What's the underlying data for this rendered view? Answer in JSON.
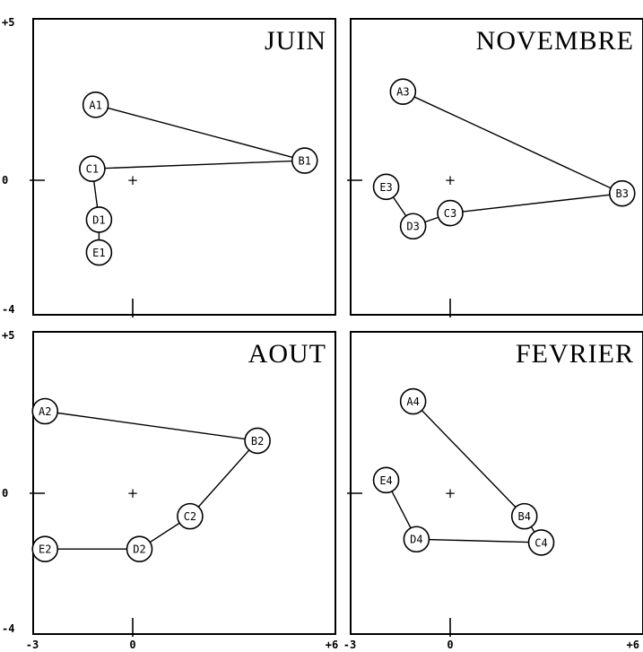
{
  "chart_data": [
    {
      "type": "scatter",
      "title": "JUIN",
      "xlim": [
        -3,
        6
      ],
      "ylim": [
        -4,
        5
      ],
      "yticks": [
        "+5",
        "0",
        "-4"
      ],
      "xticks": [],
      "points": [
        {
          "label": "A1",
          "x": -1.1,
          "y": 2.3
        },
        {
          "label": "B1",
          "x": 5.1,
          "y": 0.6
        },
        {
          "label": "C1",
          "x": -1.2,
          "y": 0.35
        },
        {
          "label": "D1",
          "x": -1.0,
          "y": -1.2
        },
        {
          "label": "E1",
          "x": -1.0,
          "y": -2.2
        }
      ],
      "edges": [
        [
          "A1",
          "B1"
        ],
        [
          "C1",
          "B1"
        ],
        [
          "C1",
          "D1"
        ],
        [
          "D1",
          "E1"
        ]
      ]
    },
    {
      "type": "scatter",
      "title": "NOVEMBRE",
      "xlim": [
        -3,
        6
      ],
      "ylim": [
        -4,
        5
      ],
      "yticks": [],
      "xticks": [],
      "points": [
        {
          "label": "A3",
          "x": -1.4,
          "y": 2.7
        },
        {
          "label": "B3",
          "x": 5.1,
          "y": -0.4
        },
        {
          "label": "C3",
          "x": 0.0,
          "y": -1.0
        },
        {
          "label": "D3",
          "x": -1.1,
          "y": -1.4
        },
        {
          "label": "E3",
          "x": -1.9,
          "y": -0.2
        }
      ],
      "edges": [
        [
          "A3",
          "B3"
        ],
        [
          "B3",
          "C3"
        ],
        [
          "C3",
          "D3"
        ],
        [
          "D3",
          "E3"
        ]
      ]
    },
    {
      "type": "scatter",
      "title": "AOUT",
      "xlim": [
        -3,
        6
      ],
      "ylim": [
        -4,
        5
      ],
      "yticks": [
        "+5",
        "0",
        "-4"
      ],
      "xticks": [
        "-3",
        "0",
        "+6"
      ],
      "points": [
        {
          "label": "A2",
          "x": -2.6,
          "y": 2.5
        },
        {
          "label": "B2",
          "x": 3.7,
          "y": 1.6
        },
        {
          "label": "C2",
          "x": 1.7,
          "y": -0.7
        },
        {
          "label": "D2",
          "x": 0.2,
          "y": -1.7
        },
        {
          "label": "E2",
          "x": -2.6,
          "y": -1.7
        }
      ],
      "edges": [
        [
          "A2",
          "B2"
        ],
        [
          "B2",
          "C2"
        ],
        [
          "C2",
          "D2"
        ],
        [
          "D2",
          "E2"
        ]
      ]
    },
    {
      "type": "scatter",
      "title": "FEVRIER",
      "xlim": [
        -3,
        6
      ],
      "ylim": [
        -4,
        5
      ],
      "yticks": [],
      "xticks": [
        "-3",
        "0",
        "+6"
      ],
      "points": [
        {
          "label": "A4",
          "x": -1.1,
          "y": 2.8
        },
        {
          "label": "B4",
          "x": 2.2,
          "y": -0.7
        },
        {
          "label": "C4",
          "x": 2.7,
          "y": -1.5
        },
        {
          "label": "D4",
          "x": -1.0,
          "y": -1.4
        },
        {
          "label": "E4",
          "x": -1.9,
          "y": 0.4
        }
      ],
      "edges": [
        [
          "A4",
          "B4"
        ],
        [
          "B4",
          "C4"
        ],
        [
          "C4",
          "D4"
        ],
        [
          "D4",
          "E4"
        ]
      ]
    }
  ]
}
